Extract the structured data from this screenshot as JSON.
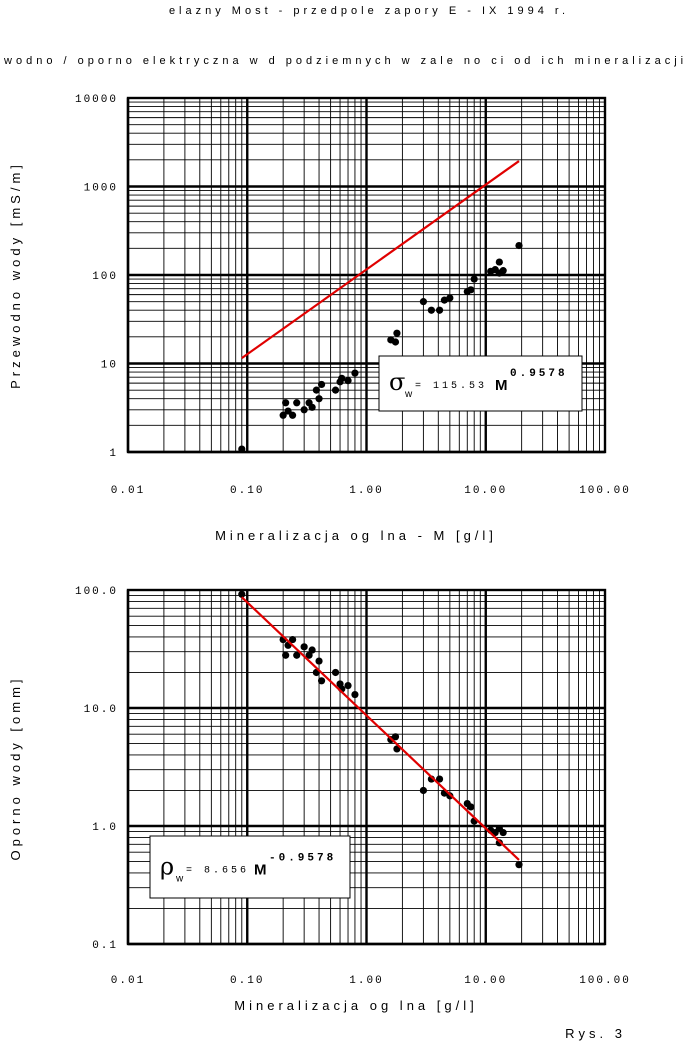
{
  "page": {
    "title": "elazny Most - przedpole zapory E - IX 1994 r.",
    "subtitle": "Przewodno / oporno elektryczna w d podziemnych w zale no ci od ich mineralizacji og lnej",
    "figure_label": "Rys. 3"
  },
  "chart_data": [
    {
      "type": "scatter",
      "title": "",
      "xlabel": "Mineralizacja og lna - M [g/l]",
      "ylabel": "Przewodno wody [mS/m]",
      "xscale": "log",
      "yscale": "log",
      "xlim": [
        0.01,
        100
      ],
      "ylim": [
        1,
        10000
      ],
      "x_ticks": [
        "0.01",
        "0.10",
        "1.00",
        "10.00",
        "100.00"
      ],
      "y_ticks": [
        "1",
        "10",
        "100",
        "1000",
        "10000"
      ],
      "grid": true,
      "series": [
        {
          "color": "#000000",
          "marker": "circle",
          "points": [
            [
              0.09,
              1.08
            ],
            [
              0.2,
              2.6
            ],
            [
              0.21,
              3.6
            ],
            [
              0.22,
              2.9
            ],
            [
              0.24,
              2.6
            ],
            [
              0.26,
              3.6
            ],
            [
              0.3,
              3.0
            ],
            [
              0.33,
              3.6
            ],
            [
              0.35,
              3.2
            ],
            [
              0.38,
              5.0
            ],
            [
              0.4,
              4.0
            ],
            [
              0.42,
              5.8
            ],
            [
              0.55,
              5.0
            ],
            [
              0.6,
              6.2
            ],
            [
              0.62,
              6.8
            ],
            [
              0.7,
              6.4
            ],
            [
              0.8,
              7.8
            ],
            [
              1.6,
              18.5
            ],
            [
              1.8,
              22.0
            ],
            [
              1.75,
              17.5
            ],
            [
              3.0,
              50.0
            ],
            [
              3.5,
              40.0
            ],
            [
              4.1,
              40.0
            ],
            [
              4.5,
              52.0
            ],
            [
              5.0,
              55.0
            ],
            [
              7.0,
              65.0
            ],
            [
              7.5,
              68.0
            ],
            [
              8.0,
              90.0
            ],
            [
              11.0,
              110.0
            ],
            [
              12.0,
              115.0
            ],
            [
              13.0,
              140.0
            ],
            [
              13.0,
              105.0
            ],
            [
              14.0,
              112.0
            ],
            [
              19.0,
              215.0
            ]
          ]
        }
      ],
      "fit": {
        "color": "#e00000",
        "coef": 115.53,
        "exponent": 0.9578,
        "x_range": [
          0.09,
          19.0
        ],
        "label_base": "σ",
        "label_sub": "w",
        "label_eq": " = 115.53 ",
        "label_var": "M",
        "label_exp": "0.9578"
      }
    },
    {
      "type": "scatter",
      "title": "",
      "xlabel": "Mineralizacja og lna [g/l]",
      "ylabel": "Oporno wody [omm]",
      "xscale": "log",
      "yscale": "log",
      "xlim": [
        0.01,
        100
      ],
      "ylim": [
        0.1,
        100
      ],
      "x_ticks": [
        "0.01",
        "0.10",
        "1.00",
        "10.00",
        "100.00"
      ],
      "y_ticks": [
        "0.1",
        "1.0",
        "10.0",
        "100.0"
      ],
      "grid": true,
      "series": [
        {
          "color": "#000000",
          "marker": "circle",
          "points": [
            [
              0.09,
              92.0
            ],
            [
              0.2,
              38.0
            ],
            [
              0.21,
              28.0
            ],
            [
              0.22,
              34.0
            ],
            [
              0.24,
              38.0
            ],
            [
              0.26,
              28.0
            ],
            [
              0.3,
              33.0
            ],
            [
              0.33,
              28.0
            ],
            [
              0.35,
              31.0
            ],
            [
              0.38,
              20.0
            ],
            [
              0.4,
              25.0
            ],
            [
              0.42,
              17.0
            ],
            [
              0.55,
              20.0
            ],
            [
              0.6,
              16.0
            ],
            [
              0.62,
              14.5
            ],
            [
              0.7,
              15.5
            ],
            [
              0.8,
              13.0
            ],
            [
              1.6,
              5.4
            ],
            [
              1.8,
              4.5
            ],
            [
              1.75,
              5.7
            ],
            [
              3.0,
              2.0
            ],
            [
              3.5,
              2.5
            ],
            [
              4.1,
              2.5
            ],
            [
              4.5,
              1.9
            ],
            [
              5.0,
              1.8
            ],
            [
              7.0,
              1.55
            ],
            [
              7.5,
              1.45
            ],
            [
              8.0,
              1.1
            ],
            [
              11.0,
              0.92
            ],
            [
              12.0,
              0.88
            ],
            [
              13.0,
              0.72
            ],
            [
              13.0,
              0.95
            ],
            [
              14.0,
              0.88
            ],
            [
              19.0,
              0.47
            ]
          ]
        }
      ],
      "fit": {
        "color": "#e00000",
        "coef": 8.656,
        "exponent": -0.9578,
        "x_range": [
          0.09,
          19.0
        ],
        "label_base": "ρ",
        "label_sub": "w",
        "label_eq": " = 8.656 ",
        "label_var": "M",
        "label_exp": "-0.9578"
      }
    }
  ]
}
